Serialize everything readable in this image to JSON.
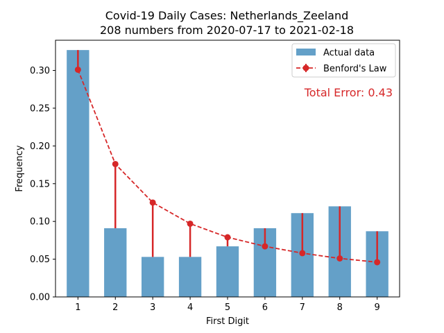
{
  "chart_data": {
    "type": "bar",
    "title": "Covid-19 Daily Cases: Netherlands_Zeeland",
    "subtitle": "208 numbers from 2020-07-17 to 2021-02-18",
    "xlabel": "First Digit",
    "ylabel": "Frequency",
    "categories": [
      "1",
      "2",
      "3",
      "4",
      "5",
      "6",
      "7",
      "8",
      "9"
    ],
    "ylim": [
      0,
      0.34
    ],
    "yticks": [
      "0.00",
      "0.05",
      "0.10",
      "0.15",
      "0.20",
      "0.25",
      "0.30"
    ],
    "series": [
      {
        "name": "Actual data",
        "type": "bar",
        "color": "#64a0c8",
        "values": [
          0.327,
          0.091,
          0.053,
          0.053,
          0.067,
          0.091,
          0.111,
          0.12,
          0.087
        ]
      },
      {
        "name": "Benford's Law",
        "type": "line",
        "color": "#d62728",
        "values": [
          0.301,
          0.176,
          0.125,
          0.097,
          0.079,
          0.067,
          0.058,
          0.051,
          0.046
        ]
      }
    ],
    "annotation": "Total Error: 0.43",
    "legend_position": "top-right",
    "grid": false
  }
}
